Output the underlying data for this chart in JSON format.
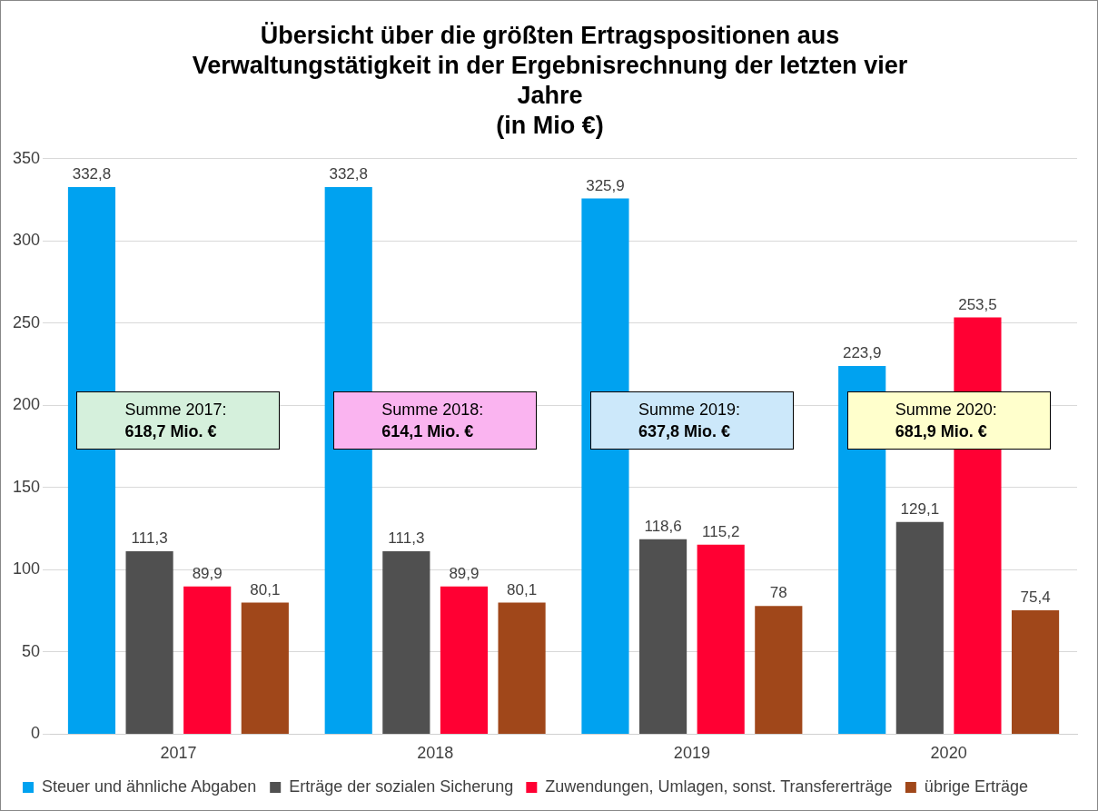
{
  "chart_data": {
    "type": "bar",
    "title": "Übersicht über die größten Ertragspositionen aus Verwaltungstätigkeit in der Ergebnisrechnung der letzten vier Jahre",
    "subtitle": "(in Mio €)",
    "categories": [
      "2017",
      "2018",
      "2019",
      "2020"
    ],
    "series": [
      {
        "name": "Steuer und ähnliche Abgaben",
        "color": "#00a2f0",
        "values": [
          332.8,
          332.8,
          325.9,
          223.9
        ],
        "value_labels": [
          "332,8",
          "332,8",
          "325,9",
          "223,9"
        ]
      },
      {
        "name": "Erträge der sozialen Sicherung",
        "color": "#505050",
        "values": [
          111.3,
          111.3,
          118.6,
          129.1
        ],
        "value_labels": [
          "111,3",
          "111,3",
          "118,6",
          "129,1"
        ]
      },
      {
        "name": "Zuwendungen, Umlagen, sonst. Transfererträge",
        "color": "#ff0033",
        "values": [
          89.9,
          89.9,
          115.2,
          253.5
        ],
        "value_labels": [
          "89,9",
          "89,9",
          "115,2",
          "253,5"
        ]
      },
      {
        "name": "übrige Erträge",
        "color": "#a0471a",
        "values": [
          80.1,
          80.1,
          78,
          75.4
        ],
        "value_labels": [
          "80,1",
          "80,1",
          "78",
          "75,4"
        ]
      }
    ],
    "ylim": [
      0,
      350
    ],
    "yticks": [
      0,
      50,
      100,
      150,
      200,
      250,
      300,
      350
    ],
    "grid": "y",
    "legend": "bottom",
    "annotations": [
      "Summe 2017:\n618,7 Mio. €",
      "Summe 2018:\n614,1 Mio. €",
      "Summe 2019:\n637,8 Mio. €",
      "Summe 2020:\n681,9 Mio. €"
    ]
  }
}
